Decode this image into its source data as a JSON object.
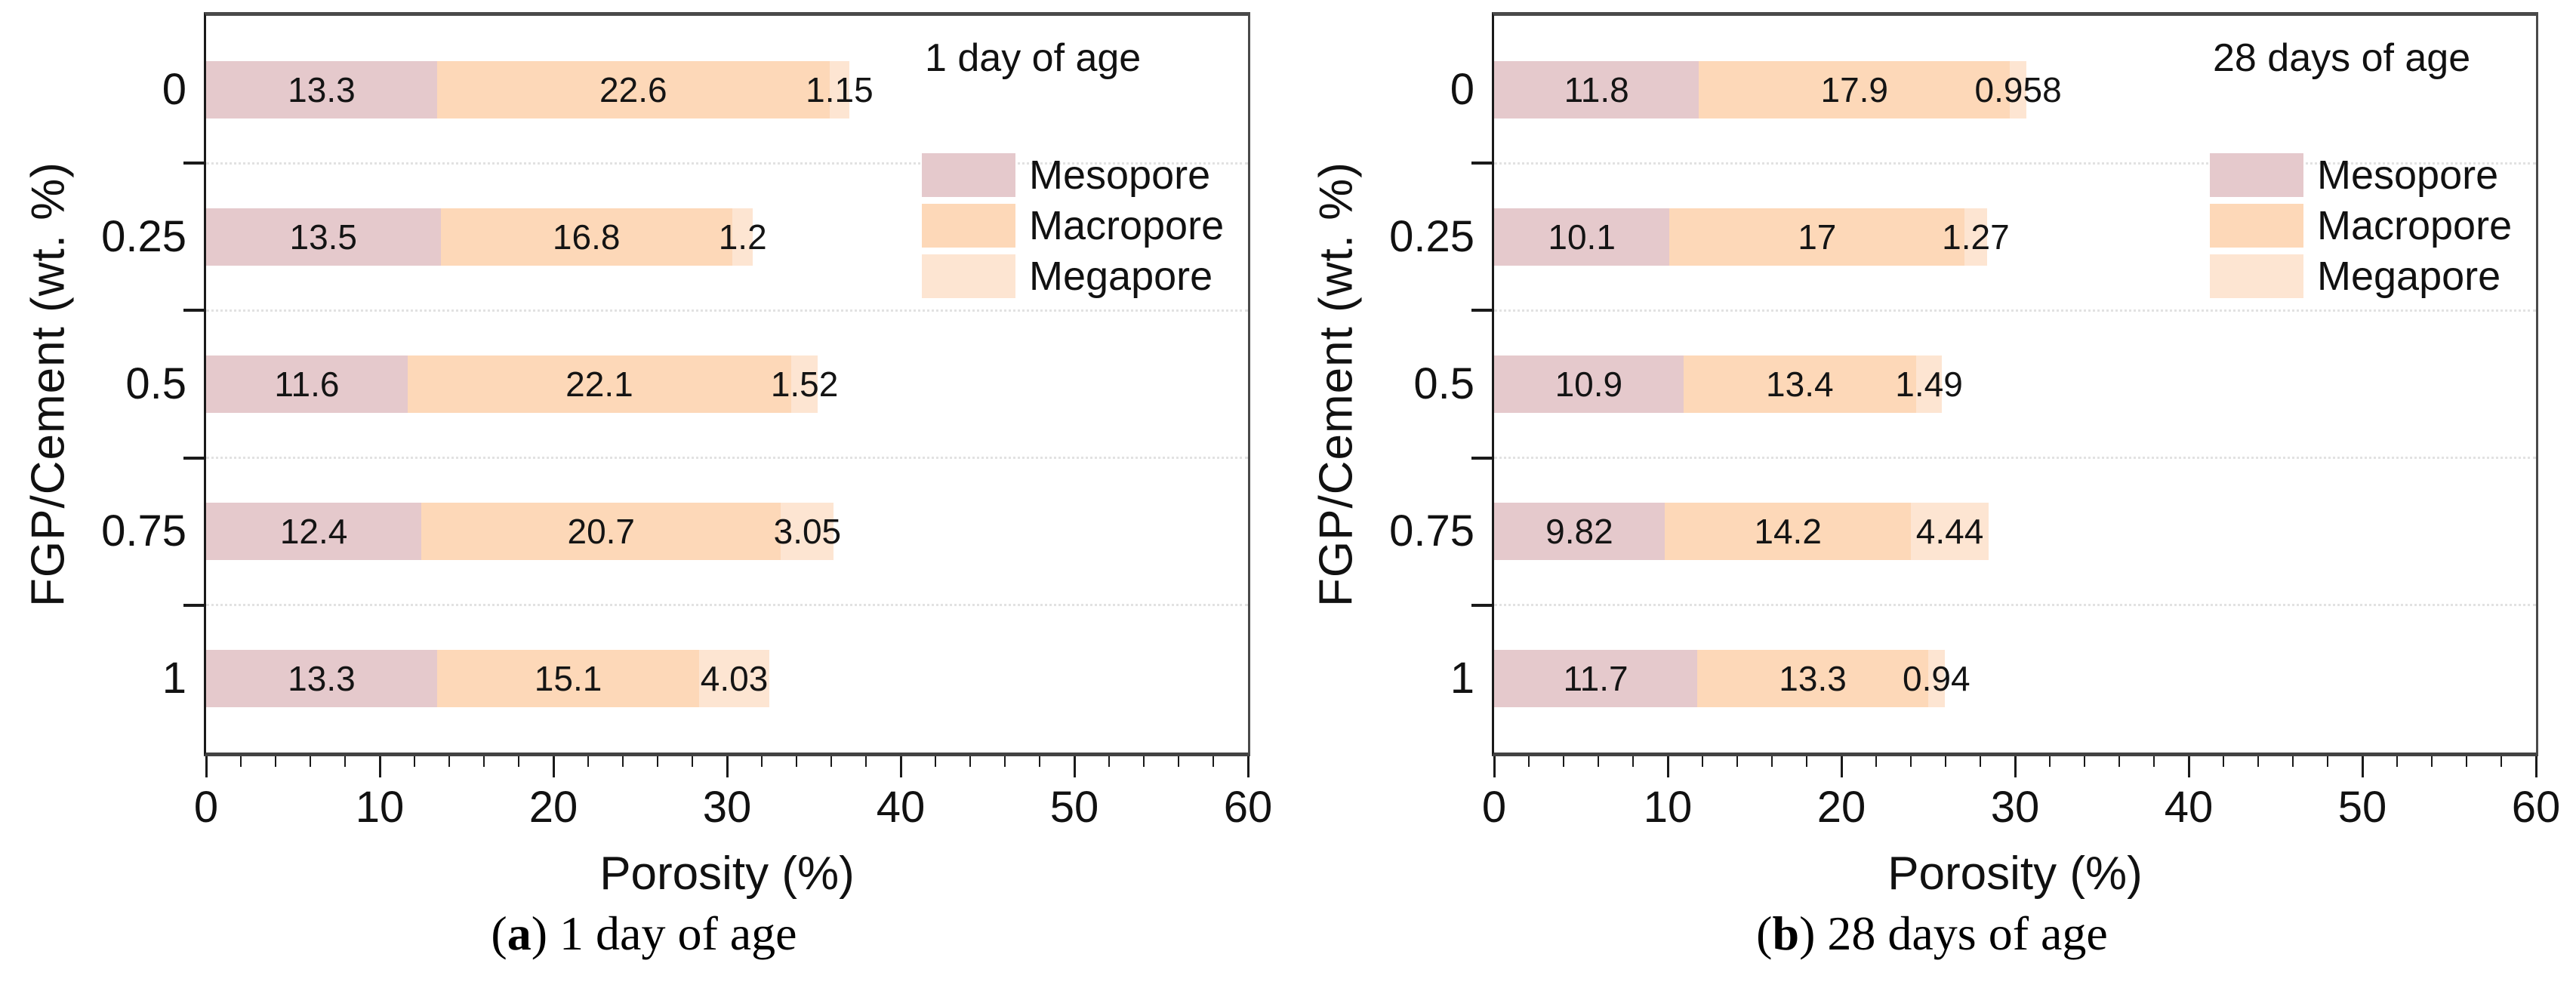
{
  "figure": {
    "description": "Two-panel horizontal stacked bar figure of porosity composition",
    "panel_count": 2
  },
  "chart_data": [
    {
      "type": "bar",
      "orientation": "horizontal",
      "stacked": true,
      "panel_label_open": "(",
      "panel_label_letter": "a",
      "panel_label_close": ")",
      "caption": "1 day of age",
      "inset_title": "1 day of age",
      "xlabel": "Porosity (%)",
      "ylabel": "FGP/Cement (wt. %)",
      "xlim": [
        0,
        60
      ],
      "xticks": [
        0,
        10,
        20,
        30,
        40,
        50,
        60
      ],
      "minor_tick_step": 2,
      "grid": "dotted horizontal lines at category boundaries",
      "legend_position": "upper right inside plot",
      "categories": [
        "0",
        "0.25",
        "0.5",
        "0.75",
        "1"
      ],
      "series": [
        {
          "name": "Mesopore",
          "color": "#E5C9CC",
          "values": [
            13.3,
            13.5,
            11.6,
            12.4,
            13.3
          ],
          "labels": [
            "13.3",
            "13.5",
            "11.6",
            "12.4",
            "13.3"
          ]
        },
        {
          "name": "Macropore",
          "color": "#FDD8B8",
          "values": [
            22.6,
            16.8,
            22.1,
            20.7,
            15.1
          ],
          "labels": [
            "22.6",
            "16.8",
            "22.1",
            "20.7",
            "15.1"
          ]
        },
        {
          "name": "Megapore",
          "color": "#FDE5D2",
          "values": [
            1.15,
            1.2,
            1.52,
            3.05,
            4.03
          ],
          "labels": [
            "1.15",
            "1.2",
            "1.52",
            "3.05",
            "4.03"
          ]
        }
      ]
    },
    {
      "type": "bar",
      "orientation": "horizontal",
      "stacked": true,
      "panel_label_open": "(",
      "panel_label_letter": "b",
      "panel_label_close": ")",
      "caption": "28 days of age",
      "inset_title": "28 days of age",
      "xlabel": "Porosity (%)",
      "ylabel": "FGP/Cement (wt. %)",
      "xlim": [
        0,
        60
      ],
      "xticks": [
        0,
        10,
        20,
        30,
        40,
        50,
        60
      ],
      "minor_tick_step": 2,
      "grid": "dotted horizontal lines at category boundaries",
      "legend_position": "upper right inside plot",
      "categories": [
        "0",
        "0.25",
        "0.5",
        "0.75",
        "1"
      ],
      "series": [
        {
          "name": "Mesopore",
          "color": "#E5C9CC",
          "values": [
            11.8,
            10.1,
            10.9,
            9.82,
            11.7
          ],
          "labels": [
            "11.8",
            "10.1",
            "10.9",
            "9.82",
            "11.7"
          ]
        },
        {
          "name": "Macropore",
          "color": "#FDD8B8",
          "values": [
            17.9,
            17,
            13.4,
            14.2,
            13.3
          ],
          "labels": [
            "17.9",
            "17",
            "13.4",
            "14.2",
            "13.3"
          ]
        },
        {
          "name": "Megapore",
          "color": "#FDE5D2",
          "values": [
            0.958,
            1.27,
            1.49,
            4.44,
            0.94
          ],
          "labels": [
            "0.958",
            "1.27",
            "1.49",
            "4.44",
            "0.94"
          ]
        }
      ]
    }
  ]
}
